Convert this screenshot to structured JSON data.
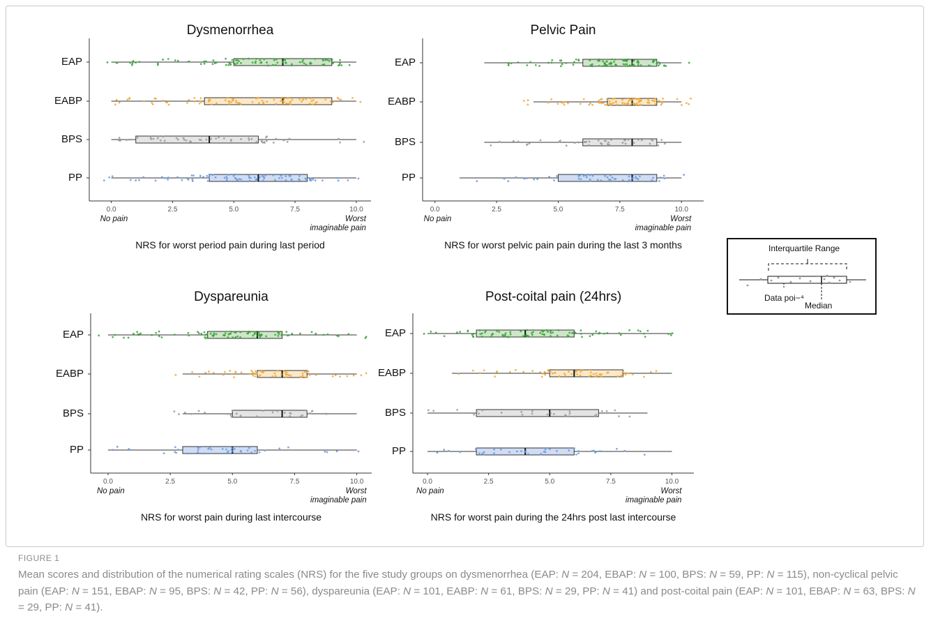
{
  "figure": {
    "label": "FIGURE 1",
    "caption_html": "Mean scores and distribution of the numerical rating scales (NRS) for the five study groups on dysmenorrhea (EAP: <i>N</i> = 204, EBAP: <i>N</i> = 100, BPS: <i>N</i> = 59, PP: <i>N</i> = 115), non-cyclical pelvic pain (EAP: <i>N</i> = 151, EBAP: <i>N</i> = 95, BPS: <i>N</i> = 42, PP: <i>N</i> = 56), dyspareunia (EAP: <i>N</i> = 101, EABP: <i>N</i> = 61, BPS: <i>N</i> = 29, PP: <i>N</i> = 41) and post-coital pain (EAP: <i>N</i> = 101, EBAP: <i>N</i> = 63, BPS: <i>N</i> = 29, PP: <i>N</i> = 41)."
  },
  "legend": {
    "iqr_label": "Interquartile Range",
    "data_points_label": "Data poi−⁴",
    "median_label": "Median"
  },
  "colors": {
    "EAP": {
      "fill": "#cde6c8",
      "dot": "#3aa33a"
    },
    "EABP": {
      "fill": "#fbe8c8",
      "dot": "#f0a93a"
    },
    "BPS": {
      "fill": "#e4e4e4",
      "dot": "#9a9a9a"
    },
    "PP": {
      "fill": "#cfdcf3",
      "dot": "#6a9be0"
    }
  },
  "chart_data": [
    {
      "type": "boxplot",
      "title": "Dysmenorrhea",
      "xlabel": "NRS for worst period pain during last period",
      "x_anchor_low": "No pain",
      "x_anchor_high": "Worst\nimaginable pain",
      "xlim": [
        -0.9,
        10.6
      ],
      "xticks": [
        "0.0",
        "2.5",
        "5.0",
        "7.5",
        "10.0"
      ],
      "tick_values": [
        0,
        2.5,
        5,
        7.5,
        10
      ],
      "categories": [
        "EAP",
        "EABP",
        "BPS",
        "PP"
      ],
      "boxes": [
        {
          "group": "EAP",
          "min": 0,
          "q1": 5,
          "median": 7,
          "q3": 9,
          "max": 10,
          "n": 204
        },
        {
          "group": "EABP",
          "min": 0,
          "q1": 3.8,
          "median": 7,
          "q3": 9,
          "max": 10,
          "n": 100
        },
        {
          "group": "BPS",
          "min": 0,
          "q1": 1,
          "median": 4,
          "q3": 6,
          "max": 10,
          "n": 59
        },
        {
          "group": "PP",
          "min": 0,
          "q1": 4,
          "median": 6,
          "q3": 8,
          "max": 10,
          "n": 115
        }
      ]
    },
    {
      "type": "boxplot",
      "title": "Pelvic Pain",
      "xlabel": "NRS for worst pelvic pain pain during the last 3 months",
      "x_anchor_low": "No pain",
      "x_anchor_high": "Worst\nimaginable pain",
      "xlim": [
        -0.5,
        10.9
      ],
      "xticks": [
        "0.0",
        "2.5",
        "5.0",
        "7.5",
        "10.0"
      ],
      "tick_values": [
        0,
        2.5,
        5,
        7.5,
        10
      ],
      "categories": [
        "EAP",
        "EABP",
        "BPS",
        "PP"
      ],
      "boxes": [
        {
          "group": "EAP",
          "min": 2,
          "q1": 6,
          "median": 8,
          "q3": 9,
          "max": 10,
          "n": 151
        },
        {
          "group": "EABP",
          "min": 4,
          "q1": 7,
          "median": 8,
          "q3": 9,
          "max": 10,
          "n": 95
        },
        {
          "group": "BPS",
          "min": 2,
          "q1": 6,
          "median": 8,
          "q3": 9,
          "max": 10,
          "n": 42
        },
        {
          "group": "PP",
          "min": 1,
          "q1": 5,
          "median": 8,
          "q3": 9,
          "max": 10,
          "n": 56
        }
      ]
    },
    {
      "type": "boxplot",
      "title": "Dyspareunia",
      "xlabel": "NRS for worst pain during last intercourse",
      "x_anchor_low": "No pain",
      "x_anchor_high": "Worst\nimaginable pain",
      "xlim": [
        -0.7,
        10.6
      ],
      "xticks": [
        "0.0",
        "2.5",
        "5.0",
        "7.5",
        "10.0"
      ],
      "tick_values": [
        0,
        2.5,
        5,
        7.5,
        10
      ],
      "categories": [
        "EAP",
        "EABP",
        "BPS",
        "PP"
      ],
      "boxes": [
        {
          "group": "EAP",
          "min": 0,
          "q1": 4,
          "median": 6,
          "q3": 7,
          "max": 10,
          "n": 101
        },
        {
          "group": "EABP",
          "min": 3,
          "q1": 6,
          "median": 7,
          "q3": 8,
          "max": 10,
          "n": 61
        },
        {
          "group": "BPS",
          "min": 3,
          "q1": 5,
          "median": 7,
          "q3": 8,
          "max": 10,
          "n": 29
        },
        {
          "group": "PP",
          "min": 0,
          "q1": 3,
          "median": 5,
          "q3": 6,
          "max": 10,
          "n": 41
        }
      ]
    },
    {
      "type": "boxplot",
      "title": "Post-coital pain (24hrs)",
      "xlabel": "NRS for worst pain during the 24hrs post last intercourse",
      "x_anchor_low": "No pain",
      "x_anchor_high": "Worst\nimaginable pain",
      "xlim": [
        -0.6,
        10.9
      ],
      "xticks": [
        "0.0",
        "2.5",
        "5.0",
        "7.5",
        "10.0"
      ],
      "tick_values": [
        0,
        2.5,
        5,
        7.5,
        10
      ],
      "categories": [
        "EAP",
        "EABP",
        "BPS",
        "PP"
      ],
      "boxes": [
        {
          "group": "EAP",
          "min": 0,
          "q1": 2,
          "median": 4,
          "q3": 6,
          "max": 10,
          "n": 101
        },
        {
          "group": "EABP",
          "min": 1,
          "q1": 5,
          "median": 6,
          "q3": 8,
          "max": 10,
          "n": 63
        },
        {
          "group": "BPS",
          "min": 0,
          "q1": 2,
          "median": 5,
          "q3": 7,
          "max": 9,
          "n": 29
        },
        {
          "group": "PP",
          "min": 0,
          "q1": 2,
          "median": 4,
          "q3": 6,
          "max": 10,
          "n": 41
        }
      ]
    }
  ]
}
